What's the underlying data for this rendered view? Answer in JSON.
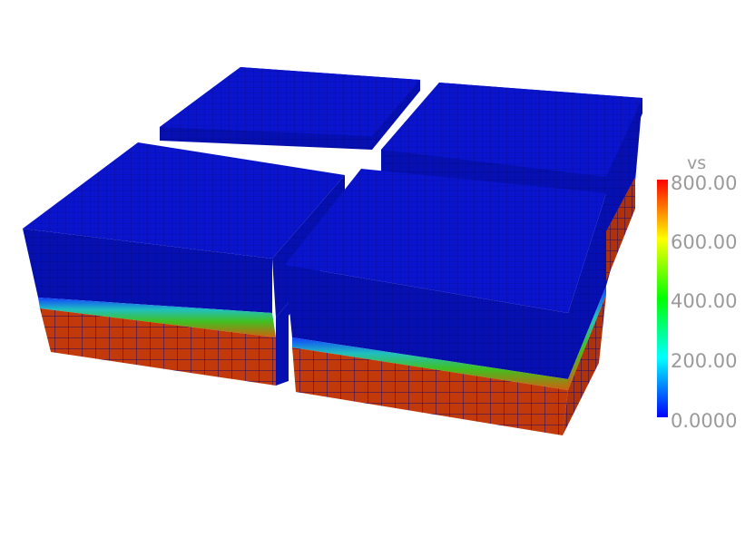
{
  "colorbar": {
    "title": "vs",
    "labels": [
      "800.00",
      "600.00",
      "400.00",
      "200.00",
      "0.0000"
    ],
    "range": [
      0,
      800
    ]
  },
  "colors": {
    "top_layer": "#0a12c8",
    "mid_green": "#35b830",
    "base_layer": "#c23a0c",
    "grid_line": "#000080"
  }
}
